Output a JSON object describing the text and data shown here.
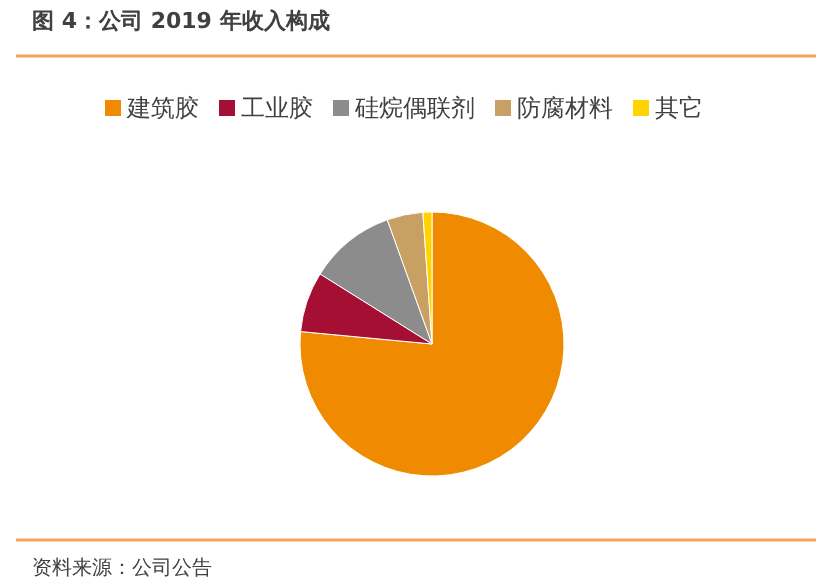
{
  "chart_data": {
    "type": "pie",
    "title": "图 4：公司 2019 年收入构成",
    "categories": [
      "建筑胶",
      "工业胶",
      "硅烷偶联剂",
      "防腐材料",
      "其它"
    ],
    "values": [
      76.5,
      7.4,
      10.6,
      4.4,
      1.1
    ],
    "colors": [
      "#f08a00",
      "#a50f34",
      "#8c8c8c",
      "#c9a063",
      "#ffd200"
    ],
    "legend": "top",
    "annotations": [
      "资料来源：公司公告"
    ]
  }
}
